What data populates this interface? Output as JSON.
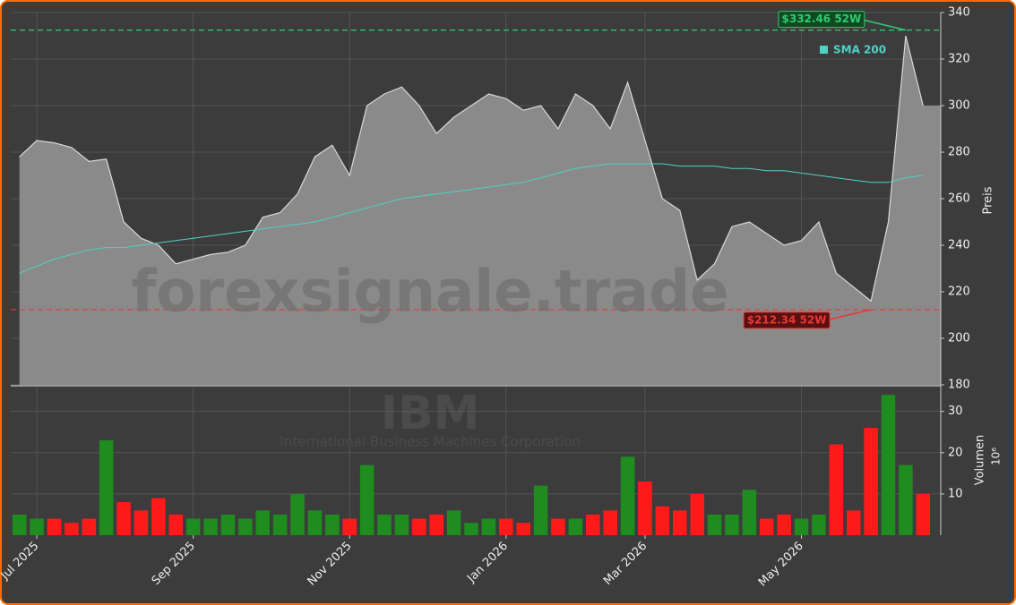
{
  "chart_data": {
    "type": "stock",
    "watermark": "forexsignale.trade",
    "ticker": "IBM",
    "company": "International Business Machines Corporation",
    "ylabel": "Preis",
    "y2label": "Volumen",
    "y2unit": "10⁶",
    "categories": [
      null,
      "Jul 2025",
      null,
      null,
      null,
      null,
      null,
      null,
      null,
      null,
      "Sep 2025",
      null,
      null,
      null,
      null,
      null,
      null,
      null,
      null,
      "Nov 2025",
      null,
      null,
      null,
      null,
      null,
      null,
      null,
      null,
      "Jan 2026",
      null,
      null,
      null,
      null,
      null,
      null,
      null,
      "Mar 2026",
      null,
      null,
      null,
      null,
      null,
      null,
      null,
      null,
      "May 2026",
      null,
      null,
      null,
      null,
      null,
      null,
      null
    ],
    "price": {
      "color": "#8a8a8a",
      "line_color": "#d8d8d8",
      "values": [
        278,
        285,
        284,
        282,
        276,
        277,
        250,
        243,
        240,
        232,
        234,
        236,
        237,
        240,
        252,
        254,
        262,
        278,
        283,
        270,
        300,
        305,
        308,
        300,
        288,
        295,
        300,
        305,
        303,
        298,
        300,
        290,
        305,
        300,
        290,
        310,
        285,
        260,
        255,
        225,
        232,
        248,
        250,
        245,
        240,
        242,
        250,
        228,
        222,
        216,
        250,
        330,
        300
      ]
    },
    "sma": {
      "name": "SMA 200",
      "color": "#4fd1c5",
      "values": [
        228,
        231,
        234,
        236,
        238,
        239,
        239,
        240,
        241,
        242,
        243,
        244,
        245,
        246,
        247,
        248,
        249,
        250,
        252,
        254,
        256,
        258,
        260,
        261,
        262,
        263,
        264,
        265,
        266,
        267,
        269,
        271,
        273,
        274,
        275,
        275,
        275,
        275,
        274,
        274,
        274,
        273,
        273,
        272,
        272,
        271,
        270,
        269,
        268,
        267,
        267,
        269,
        270
      ]
    },
    "volume": {
      "axis": "y2",
      "up_color": "#1e8c1e",
      "down_color": "#ff1a1a",
      "values": [
        5,
        4,
        4,
        3,
        4,
        23,
        8,
        6,
        9,
        5,
        4,
        4,
        5,
        4,
        6,
        5,
        10,
        6,
        5,
        4,
        17,
        5,
        5,
        4,
        5,
        6,
        3,
        4,
        4,
        3,
        12,
        4,
        4,
        5,
        6,
        19,
        13,
        7,
        6,
        10,
        5,
        5,
        11,
        4,
        5,
        4,
        5,
        22,
        6,
        26,
        34,
        17,
        10
      ]
    },
    "high": {
      "value": 332.46,
      "label": "$332.46 52W",
      "color": "#2ecc71"
    },
    "low": {
      "value": 212.34,
      "label": "$212.34 52W",
      "color": "#e53935"
    },
    "ylim": [
      180,
      340
    ],
    "yticks": [
      180,
      200,
      220,
      240,
      260,
      280,
      300,
      320,
      340
    ],
    "y2lim": [
      0,
      36
    ],
    "y2ticks": [
      10,
      20,
      30
    ],
    "grid": true
  }
}
